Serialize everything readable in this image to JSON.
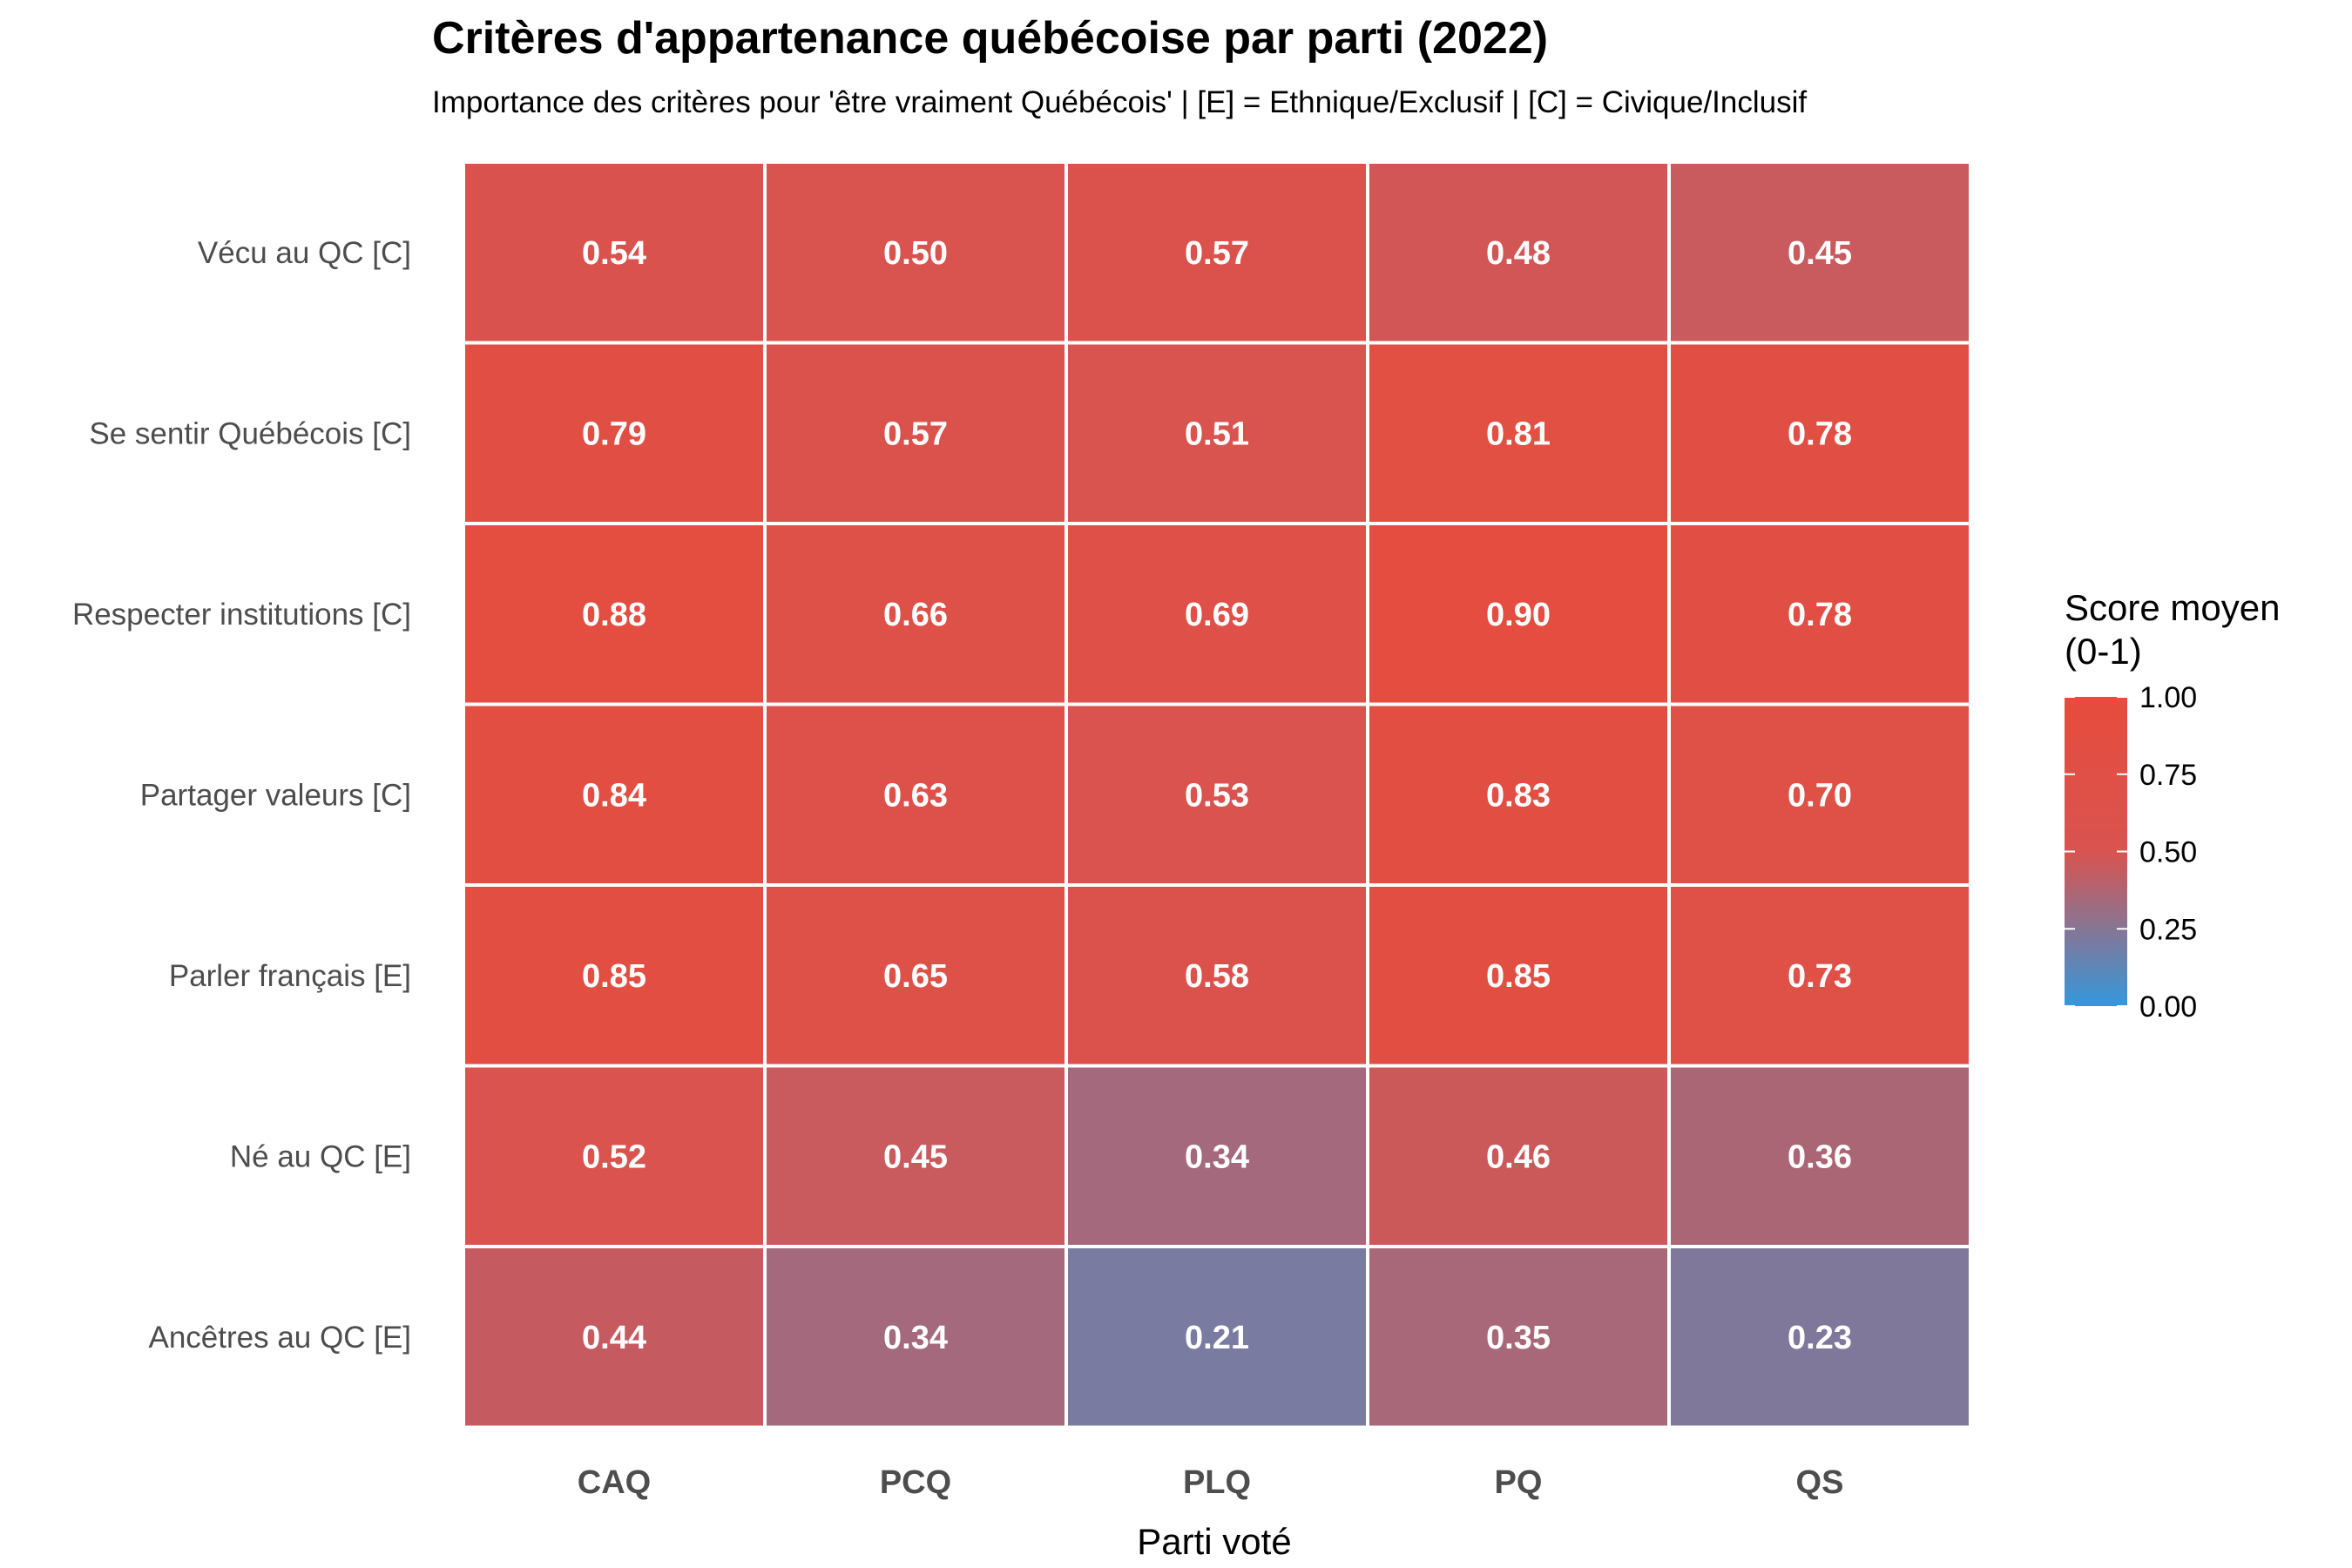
{
  "chart_data": {
    "type": "heatmap",
    "title": "Critères d'appartenance québécoise par parti (2022)",
    "subtitle": "Importance des critères pour 'être vraiment Québécois' | [E] = Ethnique/Exclusif | [C] = Civique/Inclusif",
    "xlabel": "Parti voté",
    "ylabel": "",
    "x_categories": [
      "CAQ",
      "PCQ",
      "PLQ",
      "PQ",
      "QS"
    ],
    "y_categories": [
      "Vécu au QC [C]",
      "Se sentir Québécois [C]",
      "Respecter institutions [C]",
      "Partager valeurs [C]",
      "Parler français [E]",
      "Né au QC [E]",
      "Ancêtres au QC [E]"
    ],
    "values": [
      [
        0.54,
        0.5,
        0.57,
        0.48,
        0.45
      ],
      [
        0.79,
        0.57,
        0.51,
        0.81,
        0.78
      ],
      [
        0.88,
        0.66,
        0.69,
        0.9,
        0.78
      ],
      [
        0.84,
        0.63,
        0.53,
        0.83,
        0.7
      ],
      [
        0.85,
        0.65,
        0.58,
        0.85,
        0.73
      ],
      [
        0.52,
        0.45,
        0.34,
        0.46,
        0.36
      ],
      [
        0.44,
        0.34,
        0.21,
        0.35,
        0.23
      ]
    ],
    "value_labels": [
      [
        "0.54",
        "0.50",
        "0.57",
        "0.48",
        "0.45"
      ],
      [
        "0.79",
        "0.57",
        "0.51",
        "0.81",
        "0.78"
      ],
      [
        "0.88",
        "0.66",
        "0.69",
        "0.90",
        "0.78"
      ],
      [
        "0.84",
        "0.63",
        "0.53",
        "0.83",
        "0.70"
      ],
      [
        "0.85",
        "0.65",
        "0.58",
        "0.85",
        "0.73"
      ],
      [
        "0.52",
        "0.45",
        "0.34",
        "0.46",
        "0.36"
      ],
      [
        "0.44",
        "0.34",
        "0.21",
        "0.35",
        "0.23"
      ]
    ],
    "legend": {
      "title_lines": [
        "Score moyen",
        "(0-1)"
      ],
      "range": [
        0,
        1
      ],
      "tick_labels": [
        "0.00",
        "0.25",
        "0.50",
        "0.75",
        "1.00"
      ],
      "tick_values": [
        0,
        0.25,
        0.5,
        0.75,
        1.0
      ],
      "color_low": "#3498db",
      "color_mid": "#d9534f",
      "color_high": "#e74c3c",
      "placement": "right"
    },
    "grid": false
  }
}
